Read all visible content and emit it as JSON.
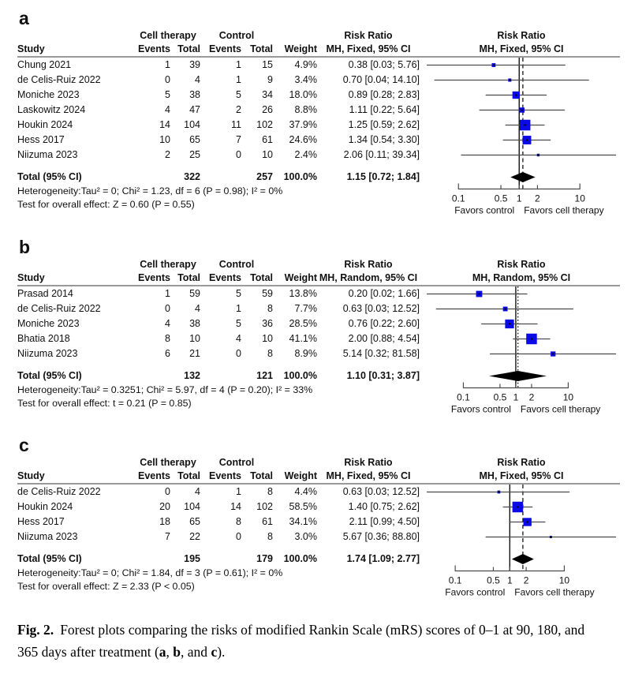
{
  "colors": {
    "square": "#0a0ae6",
    "square_center": "#000000",
    "diamond": "#000000",
    "ci_line": "#4d4d4d",
    "axis": "#4d4d4d",
    "reference_line": "#000000",
    "pooled_line": "#000000",
    "rule": "#9a9a9a",
    "text": "#111111"
  },
  "caption": {
    "label": "Fig. 2.",
    "part1": "Forest plots comparing the risks of modified Rankin Scale (mRS) scores of 0–1 at 90, 180, and 365 days after treatment (",
    "bold_a": "a",
    "sep1": ", ",
    "bold_b": "b",
    "sep2": ", and ",
    "bold_c": "c",
    "end": ")."
  },
  "chart_data": [
    {
      "type": "forest",
      "panel": "a",
      "headers": {
        "group_treat": "Cell therapy",
        "group_ctrl": "Control",
        "study": "Study",
        "events": "Events",
        "total": "Total",
        "weight": "Weight",
        "risk_ratio": "Risk Ratio",
        "model": "MH, Fixed, 95% CI"
      },
      "studies": [
        {
          "study": "Chung 2021",
          "events_t": "1",
          "total_t": "39",
          "events_c": "1",
          "total_c": "15",
          "weight": "4.9%",
          "weight_pct": 4.9,
          "rr": 0.38,
          "ci_low": 0.03,
          "ci_high": 5.76,
          "rr_text": "0.38 [0.03; 5.76]"
        },
        {
          "study": "de Celis-Ruiz 2022",
          "events_t": "0",
          "total_t": "4",
          "events_c": "1",
          "total_c": "9",
          "weight": "3.4%",
          "weight_pct": 3.4,
          "rr": 0.7,
          "ci_low": 0.04,
          "ci_high": 14.1,
          "rr_text": "0.70 [0.04; 14.10]"
        },
        {
          "study": "Moniche 2023",
          "events_t": "5",
          "total_t": "38",
          "events_c": "5",
          "total_c": "34",
          "weight": "18.0%",
          "weight_pct": 18.0,
          "rr": 0.89,
          "ci_low": 0.28,
          "ci_high": 2.83,
          "rr_text": "0.89 [0.28; 2.83]"
        },
        {
          "study": "Laskowitz 2024",
          "events_t": "4",
          "total_t": "47",
          "events_c": "2",
          "total_c": "26",
          "weight": "8.8%",
          "weight_pct": 8.8,
          "rr": 1.11,
          "ci_low": 0.22,
          "ci_high": 5.64,
          "rr_text": "1.11 [0.22; 5.64]"
        },
        {
          "study": "Houkin 2024",
          "events_t": "14",
          "total_t": "104",
          "events_c": "11",
          "total_c": "102",
          "weight": "37.9%",
          "weight_pct": 37.9,
          "rr": 1.25,
          "ci_low": 0.59,
          "ci_high": 2.62,
          "rr_text": "1.25 [0.59; 2.62]"
        },
        {
          "study": "Hess 2017",
          "events_t": "10",
          "total_t": "65",
          "events_c": "7",
          "total_c": "61",
          "weight": "24.6%",
          "weight_pct": 24.6,
          "rr": 1.34,
          "ci_low": 0.54,
          "ci_high": 3.3,
          "rr_text": "1.34 [0.54; 3.30]"
        },
        {
          "study": "Niizuma 2023",
          "events_t": "2",
          "total_t": "25",
          "events_c": "0",
          "total_c": "10",
          "weight": "2.4%",
          "weight_pct": 2.4,
          "rr": 2.06,
          "ci_low": 0.11,
          "ci_high": 39.34,
          "rr_text": "2.06 [0.11; 39.34]"
        }
      ],
      "total": {
        "label": "Total (95% CI)",
        "total_t": "322",
        "total_c": "257",
        "weight": "100.0%",
        "rr": 1.15,
        "ci_low": 0.72,
        "ci_high": 1.84,
        "rr_text": "1.15 [0.72; 1.84]"
      },
      "heterogeneity": "Heterogeneity:Tau² = 0; Chi² = 1.23, df = 6 (P = 0.98); I² = 0%",
      "test": "Test for overall effect: Z = 0.60 (P = 0.55)",
      "axis_ticks": [
        0.1,
        0.5,
        1,
        2,
        10
      ],
      "favors_left": "Favors control",
      "favors_right": "Favors cell therapy",
      "pooled_line_style": "dashed"
    },
    {
      "type": "forest",
      "panel": "b",
      "headers": {
        "group_treat": "Cell therapy",
        "group_ctrl": "Control",
        "study": "Study",
        "events": "Events",
        "total": "Total",
        "weight": "Weight",
        "risk_ratio": "Risk Ratio",
        "model": "MH, Random, 95% CI"
      },
      "studies": [
        {
          "study": "Prasad 2014",
          "events_t": "1",
          "total_t": "59",
          "events_c": "5",
          "total_c": "59",
          "weight": "13.8%",
          "weight_pct": 13.8,
          "rr": 0.2,
          "ci_low": 0.02,
          "ci_high": 1.66,
          "rr_text": "0.20 [0.02; 1.66]"
        },
        {
          "study": "de Celis-Ruiz 2022",
          "events_t": "0",
          "total_t": "4",
          "events_c": "1",
          "total_c": "8",
          "weight": "7.7%",
          "weight_pct": 7.7,
          "rr": 0.63,
          "ci_low": 0.03,
          "ci_high": 12.52,
          "rr_text": "0.63 [0.03; 12.52]"
        },
        {
          "study": "Moniche 2023",
          "events_t": "4",
          "total_t": "38",
          "events_c": "5",
          "total_c": "36",
          "weight": "28.5%",
          "weight_pct": 28.5,
          "rr": 0.76,
          "ci_low": 0.22,
          "ci_high": 2.6,
          "rr_text": "0.76 [0.22; 2.60]"
        },
        {
          "study": "Bhatia 2018",
          "events_t": "8",
          "total_t": "10",
          "events_c": "4",
          "total_c": "10",
          "weight": "41.1%",
          "weight_pct": 41.1,
          "rr": 2.0,
          "ci_low": 0.88,
          "ci_high": 4.54,
          "rr_text": "2.00 [0.88; 4.54]"
        },
        {
          "study": "Niizuma 2023",
          "events_t": "6",
          "total_t": "21",
          "events_c": "0",
          "total_c": "8",
          "weight": "8.9%",
          "weight_pct": 8.9,
          "rr": 5.14,
          "ci_low": 0.32,
          "ci_high": 81.58,
          "rr_text": "5.14 [0.32; 81.58]"
        }
      ],
      "total": {
        "label": "Total (95% CI)",
        "total_t": "132",
        "total_c": "121",
        "weight": "100.0%",
        "rr": 1.1,
        "ci_low": 0.31,
        "ci_high": 3.87,
        "rr_text": "1.10 [0.31; 3.87]"
      },
      "heterogeneity": "Heterogeneity:Tau² = 0.3251; Chi² = 5.97, df = 4 (P = 0.20); I² = 33%",
      "test": "Test for overall effect: t = 0.21 (P = 0.85)",
      "axis_ticks": [
        0.1,
        0.5,
        1,
        2,
        10
      ],
      "favors_left": "Favors control",
      "favors_right": "Favors cell therapy",
      "pooled_line_style": "dotted"
    },
    {
      "type": "forest",
      "panel": "c",
      "headers": {
        "group_treat": "Cell therapy",
        "group_ctrl": "Control",
        "study": "Study",
        "events": "Events",
        "total": "Total",
        "weight": "Weight",
        "risk_ratio": "Risk Ratio",
        "model": "MH, Fixed, 95% CI"
      },
      "studies": [
        {
          "study": "de Celis-Ruiz 2022",
          "events_t": "0",
          "total_t": "4",
          "events_c": "1",
          "total_c": "8",
          "weight": "4.4%",
          "weight_pct": 4.4,
          "rr": 0.63,
          "ci_low": 0.03,
          "ci_high": 12.52,
          "rr_text": "0.63 [0.03; 12.52]"
        },
        {
          "study": "Houkin 2024",
          "events_t": "20",
          "total_t": "104",
          "events_c": "14",
          "total_c": "102",
          "weight": "58.5%",
          "weight_pct": 58.5,
          "rr": 1.4,
          "ci_low": 0.75,
          "ci_high": 2.62,
          "rr_text": "1.40 [0.75; 2.62]"
        },
        {
          "study": "Hess 2017",
          "events_t": "18",
          "total_t": "65",
          "events_c": "8",
          "total_c": "61",
          "weight": "34.1%",
          "weight_pct": 34.1,
          "rr": 2.11,
          "ci_low": 0.99,
          "ci_high": 4.5,
          "rr_text": "2.11 [0.99; 4.50]"
        },
        {
          "study": "Niizuma 2023",
          "events_t": "7",
          "total_t": "22",
          "events_c": "0",
          "total_c": "8",
          "weight": "3.0%",
          "weight_pct": 3.0,
          "rr": 5.67,
          "ci_low": 0.36,
          "ci_high": 88.8,
          "rr_text": "5.67 [0.36; 88.80]"
        }
      ],
      "total": {
        "label": "Total (95% CI)",
        "total_t": "195",
        "total_c": "179",
        "weight": "100.0%",
        "rr": 1.74,
        "ci_low": 1.09,
        "ci_high": 2.77,
        "rr_text": "1.74 [1.09; 2.77]"
      },
      "heterogeneity": "Heterogeneity:Tau² = 0; Chi² = 1.84, df = 3 (P = 0.61); I² = 0%",
      "test": "Test for overall effect: Z = 2.33 (P < 0.05)",
      "axis_ticks": [
        0.1,
        0.5,
        1,
        2,
        10
      ],
      "favors_left": "Favors control",
      "favors_right": "Favors cell therapy",
      "pooled_line_style": "dashed"
    }
  ]
}
